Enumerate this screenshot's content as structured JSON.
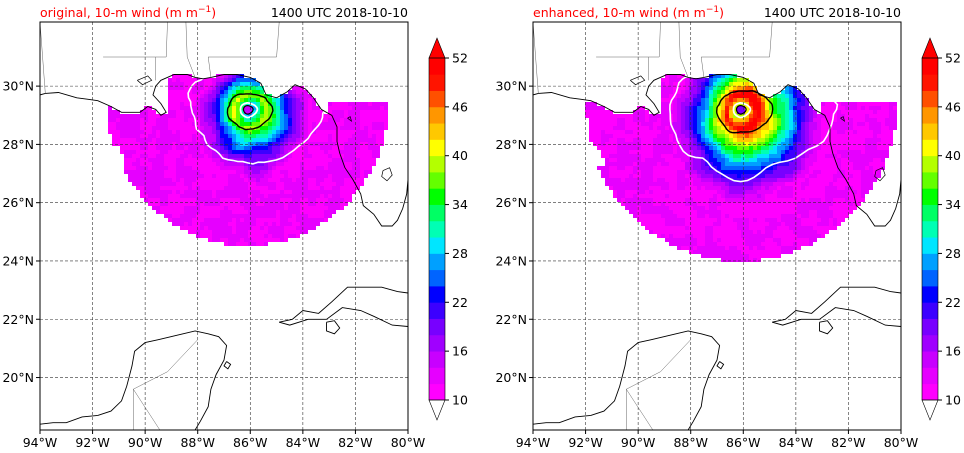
{
  "chart_data": [
    {
      "type": "heatmap",
      "title_left_prefix": "original, 10-m wind (m m",
      "title_left_sup": "−1",
      "title_left_suffix": ")",
      "title_right": "1400 UTC 2018-10-10",
      "xlim": [
        -94,
        -80
      ],
      "ylim": [
        18.2,
        32.2
      ],
      "x_ticks": [
        -94,
        -92,
        -90,
        -88,
        -86,
        -84,
        -82,
        -80
      ],
      "x_tick_labels": [
        "94°W",
        "92°W",
        "90°W",
        "88°W",
        "86°W",
        "84°W",
        "82°W",
        "80°W"
      ],
      "y_ticks": [
        20,
        22,
        24,
        26,
        28,
        30
      ],
      "y_tick_labels": [
        "20°N",
        "22°N",
        "24°N",
        "26°N",
        "28°N",
        "30°N"
      ],
      "grid": true,
      "center": [
        -86.1,
        29.2
      ],
      "peak_wind": 40,
      "core_radius": 2.0,
      "outer_radius": 5.2
    },
    {
      "type": "heatmap",
      "title_left_prefix": "enhanced, 10-m wind (m m",
      "title_left_sup": "−1",
      "title_left_suffix": ")",
      "title_right": "1400 UTC 2018-10-10",
      "xlim": [
        -94,
        -80
      ],
      "ylim": [
        18.2,
        32.2
      ],
      "x_ticks": [
        -94,
        -92,
        -90,
        -88,
        -86,
        -84,
        -82,
        -80
      ],
      "x_tick_labels": [
        "94°W",
        "92°W",
        "90°W",
        "88°W",
        "86°W",
        "84°W",
        "82°W",
        "80°W"
      ],
      "y_ticks": [
        20,
        22,
        24,
        26,
        28,
        30
      ],
      "y_tick_labels": [
        "20°N",
        "22°N",
        "24°N",
        "26°N",
        "28°N",
        "30°N"
      ],
      "grid": true,
      "center": [
        -86.1,
        29.2
      ],
      "peak_wind": 52,
      "core_radius": 2.4,
      "outer_radius": 5.8
    }
  ],
  "colorbar": {
    "min": 10,
    "max": 52,
    "step": 3,
    "tick_values": [
      10,
      16,
      22,
      28,
      34,
      40,
      46,
      52
    ],
    "tick_labels": [
      "10",
      "16",
      "22",
      "28",
      "34",
      "40",
      "46",
      "52"
    ],
    "colors": [
      "#ff00ff",
      "#e600ff",
      "#c800ff",
      "#a000ff",
      "#7800ff",
      "#3c00ff",
      "#0000ff",
      "#0064ff",
      "#00a0ff",
      "#00e6ff",
      "#00ffb4",
      "#00ff64",
      "#00ff00",
      "#64ff00",
      "#b4ff00",
      "#ffff00",
      "#ffc800",
      "#ff9600",
      "#ff5000",
      "#ff1400",
      "#ff0000"
    ],
    "extend": "both"
  }
}
